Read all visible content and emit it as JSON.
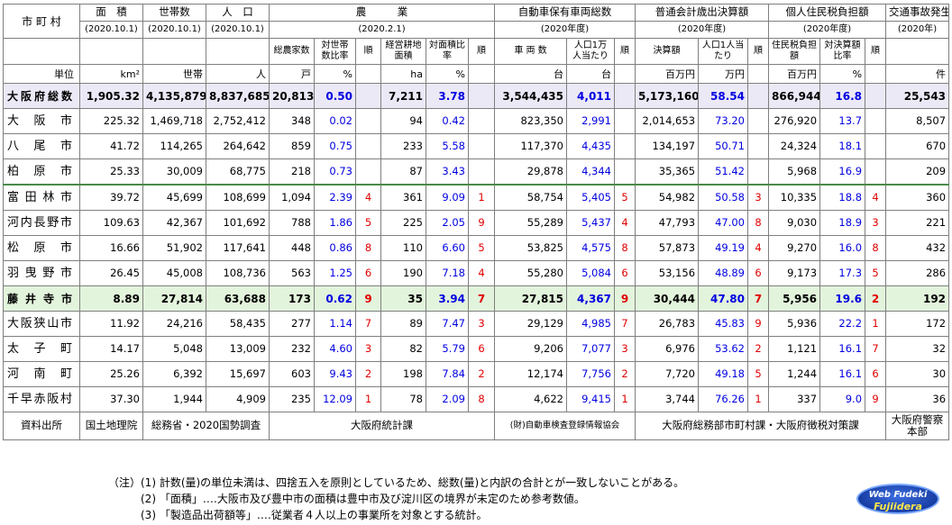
{
  "headers": {
    "municipality": "市 町 村",
    "area": "面　積",
    "area_date": "(2020.10.1)",
    "households": "世帯数",
    "households_date": "(2020.10.1)",
    "population": "人　口",
    "population_date": "(2020.10.1)",
    "agriculture": "農　　　業",
    "agriculture_date": "(2020.2.1)",
    "vehicles": "自動車保有車両総数",
    "vehicles_date": "(2020年度)",
    "budget": "普通会計歳出決算額",
    "budget_date": "(2020年度)",
    "tax": "個人住民税負担額",
    "tax_date": "(2020年度)",
    "traffic": "交通事故発生件数",
    "traffic_date": "(2020年)",
    "farm_households": "総農家数",
    "farm_ratio": "対世帯数比率",
    "rank": "順",
    "farm_area": "経営耕地面積",
    "farm_area_ratio": "対面積比率",
    "vehicle_count": "車 両 数",
    "vehicle_per": "人口1万人当たり",
    "budget_amount": "決算額",
    "budget_per": "人口1人当たり",
    "tax_amount": "住民税負担額",
    "tax_ratio": "対決算額比率"
  },
  "units": {
    "label": "単位",
    "area": "km²",
    "households": "世帯",
    "population": "人",
    "farm_households": "戸",
    "farm_ratio": "%",
    "farm_area": "ha",
    "farm_area_ratio": "%",
    "vehicle_count": "台",
    "vehicle_per": "台",
    "budget_amount": "百万円",
    "budget_per": "万円",
    "tax_amount": "百万円",
    "tax_ratio": "%",
    "traffic": "件"
  },
  "rows": [
    {
      "name": "大阪府総数",
      "area": "1,905.32",
      "hh": "4,135,879",
      "pop": "8,837,685",
      "farm": "20,813",
      "farm_r": "0.50",
      "farm_rank": "",
      "farea": "7,211",
      "farea_r": "3.78",
      "farea_rank": "",
      "veh": "3,544,435",
      "veh_p": "4,011",
      "veh_rank": "",
      "bud": "5,173,160",
      "bud_p": "58.54",
      "bud_rank": "",
      "tax": "866,944",
      "tax_r": "16.8",
      "tax_rank": "",
      "traffic": "25,543"
    },
    {
      "name": "大阪市",
      "area": "225.32",
      "hh": "1,469,718",
      "pop": "2,752,412",
      "farm": "348",
      "farm_r": "0.02",
      "farm_rank": "",
      "farea": "94",
      "farea_r": "0.42",
      "farea_rank": "",
      "veh": "823,350",
      "veh_p": "2,991",
      "veh_rank": "",
      "bud": "2,014,653",
      "bud_p": "73.20",
      "bud_rank": "",
      "tax": "276,920",
      "tax_r": "13.7",
      "tax_rank": "",
      "traffic": "8,507"
    },
    {
      "name": "八尾市",
      "area": "41.72",
      "hh": "114,265",
      "pop": "264,642",
      "farm": "859",
      "farm_r": "0.75",
      "farm_rank": "",
      "farea": "233",
      "farea_r": "5.58",
      "farea_rank": "",
      "veh": "117,370",
      "veh_p": "4,435",
      "veh_rank": "",
      "bud": "134,197",
      "bud_p": "50.71",
      "bud_rank": "",
      "tax": "24,324",
      "tax_r": "18.1",
      "tax_rank": "",
      "traffic": "670"
    },
    {
      "name": "柏原市",
      "area": "25.33",
      "hh": "30,009",
      "pop": "68,775",
      "farm": "218",
      "farm_r": "0.73",
      "farm_rank": "",
      "farea": "87",
      "farea_r": "3.43",
      "farea_rank": "",
      "veh": "29,878",
      "veh_p": "4,344",
      "veh_rank": "",
      "bud": "35,365",
      "bud_p": "51.42",
      "bud_rank": "",
      "tax": "5,968",
      "tax_r": "16.9",
      "tax_rank": "",
      "traffic": "209"
    },
    {
      "name": "富田林市",
      "area": "39.72",
      "hh": "45,699",
      "pop": "108,699",
      "farm": "1,094",
      "farm_r": "2.39",
      "farm_rank": "4",
      "farea": "361",
      "farea_r": "9.09",
      "farea_rank": "1",
      "veh": "58,754",
      "veh_p": "5,405",
      "veh_rank": "5",
      "bud": "54,982",
      "bud_p": "50.58",
      "bud_rank": "3",
      "tax": "10,335",
      "tax_r": "18.8",
      "tax_rank": "4",
      "traffic": "360"
    },
    {
      "name": "河内長野市",
      "area": "109.63",
      "hh": "42,367",
      "pop": "101,692",
      "farm": "788",
      "farm_r": "1.86",
      "farm_rank": "5",
      "farea": "225",
      "farea_r": "2.05",
      "farea_rank": "9",
      "veh": "55,289",
      "veh_p": "5,437",
      "veh_rank": "4",
      "bud": "47,793",
      "bud_p": "47.00",
      "bud_rank": "8",
      "tax": "9,030",
      "tax_r": "18.9",
      "tax_rank": "3",
      "traffic": "221"
    },
    {
      "name": "松原市",
      "area": "16.66",
      "hh": "51,902",
      "pop": "117,641",
      "farm": "448",
      "farm_r": "0.86",
      "farm_rank": "8",
      "farea": "110",
      "farea_r": "6.60",
      "farea_rank": "5",
      "veh": "53,825",
      "veh_p": "4,575",
      "veh_rank": "8",
      "bud": "57,873",
      "bud_p": "49.19",
      "bud_rank": "4",
      "tax": "9,270",
      "tax_r": "16.0",
      "tax_rank": "8",
      "traffic": "432"
    },
    {
      "name": "羽曳野市",
      "area": "26.45",
      "hh": "45,008",
      "pop": "108,736",
      "farm": "563",
      "farm_r": "1.25",
      "farm_rank": "6",
      "farea": "190",
      "farea_r": "7.18",
      "farea_rank": "4",
      "veh": "55,280",
      "veh_p": "5,084",
      "veh_rank": "6",
      "bud": "53,156",
      "bud_p": "48.89",
      "bud_rank": "6",
      "tax": "9,173",
      "tax_r": "17.3",
      "tax_rank": "5",
      "traffic": "286"
    },
    {
      "name": "藤井寺市",
      "area": "8.89",
      "hh": "27,814",
      "pop": "63,688",
      "farm": "173",
      "farm_r": "0.62",
      "farm_rank": "9",
      "farea": "35",
      "farea_r": "3.94",
      "farea_rank": "7",
      "veh": "27,815",
      "veh_p": "4,367",
      "veh_rank": "9",
      "bud": "30,444",
      "bud_p": "47.80",
      "bud_rank": "7",
      "tax": "5,956",
      "tax_r": "19.6",
      "tax_rank": "2",
      "traffic": "192"
    },
    {
      "name": "大阪狭山市",
      "area": "11.92",
      "hh": "24,216",
      "pop": "58,435",
      "farm": "277",
      "farm_r": "1.14",
      "farm_rank": "7",
      "farea": "89",
      "farea_r": "7.47",
      "farea_rank": "3",
      "veh": "29,129",
      "veh_p": "4,985",
      "veh_rank": "7",
      "bud": "26,783",
      "bud_p": "45.83",
      "bud_rank": "9",
      "tax": "5,936",
      "tax_r": "22.2",
      "tax_rank": "1",
      "traffic": "172"
    },
    {
      "name": "太子町",
      "area": "14.17",
      "hh": "5,048",
      "pop": "13,009",
      "farm": "232",
      "farm_r": "4.60",
      "farm_rank": "3",
      "farea": "82",
      "farea_r": "5.79",
      "farea_rank": "6",
      "veh": "9,206",
      "veh_p": "7,077",
      "veh_rank": "3",
      "bud": "6,976",
      "bud_p": "53.62",
      "bud_rank": "2",
      "tax": "1,121",
      "tax_r": "16.1",
      "tax_rank": "7",
      "traffic": "32"
    },
    {
      "name": "河南町",
      "area": "25.26",
      "hh": "6,392",
      "pop": "15,697",
      "farm": "603",
      "farm_r": "9.43",
      "farm_rank": "2",
      "farea": "198",
      "farea_r": "7.84",
      "farea_rank": "2",
      "veh": "12,174",
      "veh_p": "7,756",
      "veh_rank": "2",
      "bud": "7,720",
      "bud_p": "49.18",
      "bud_rank": "5",
      "tax": "1,244",
      "tax_r": "16.1",
      "tax_rank": "6",
      "traffic": "30"
    },
    {
      "name": "千早赤阪村",
      "area": "37.30",
      "hh": "1,944",
      "pop": "4,909",
      "farm": "235",
      "farm_r": "12.09",
      "farm_rank": "1",
      "farea": "78",
      "farea_r": "2.09",
      "farea_rank": "8",
      "veh": "4,622",
      "veh_p": "9,415",
      "veh_rank": "1",
      "bud": "3,744",
      "bud_p": "76.26",
      "bud_rank": "1",
      "tax": "337",
      "tax_r": "9.0",
      "tax_rank": "9",
      "traffic": "36"
    }
  ],
  "sources": {
    "label": "資料出所",
    "area": "国土地理院",
    "census": "総務省・2020国勢調査",
    "agri": "大阪府統計課",
    "vehicle": "(財)自動車検査登録情報協会",
    "finance": "大阪府総務部市町村課・大阪府徴税対策課",
    "police": "大阪府警察本部"
  },
  "notes": [
    "（注）(1) 計数(量)の単位未満は、四捨五入を原則としているため、総数(量)と内訳の合計とが一致しないことがある。",
    "　　　(2) 「面積」‥‥大阪市及び豊中市の面積は豊中市及び淀川区の境界が未定のため参考数値。",
    "　　　(3) 「製造品出荷額等」‥‥従業者４人以上の事業所を対象とする統計。"
  ],
  "logo": {
    "line1": "Web Fudeki",
    "line2": "Fujiidera"
  }
}
